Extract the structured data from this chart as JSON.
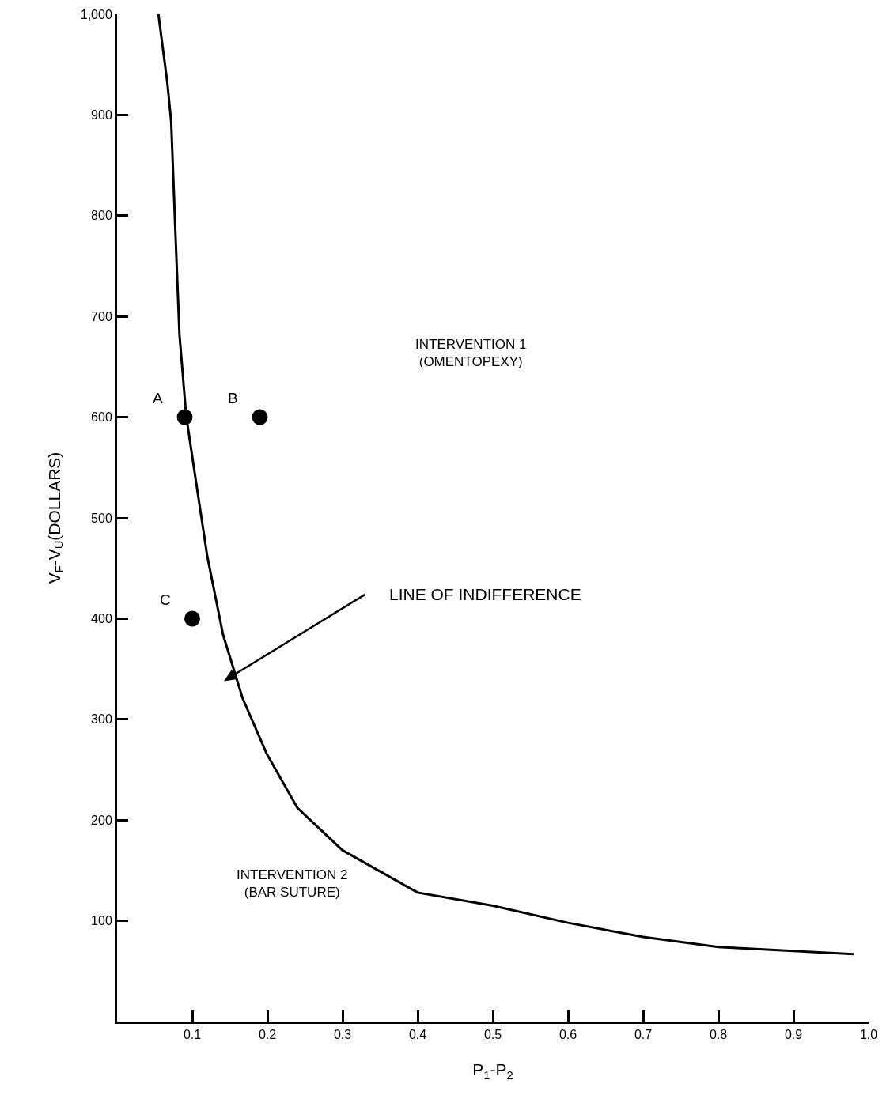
{
  "chart_data": {
    "type": "line",
    "xlabel": "P$_{1}$-P$_{2}$",
    "ylabel": "V$_{F}$-V$_{U}$(DOLLARS)",
    "xlim": [
      0,
      1.0
    ],
    "ylim": [
      0,
      1000
    ],
    "xticks": [
      0.1,
      0.2,
      0.3,
      0.4,
      0.5,
      0.6,
      0.7,
      0.8,
      0.9,
      {
        "value": 1,
        "label": "1.0"
      }
    ],
    "yticks": [
      100,
      200,
      300,
      400,
      500,
      600,
      700,
      800,
      900,
      {
        "value": 1000,
        "label": "1,000"
      }
    ],
    "line_style": "solid",
    "series": [
      {
        "color": "#000000",
        "marker": "none",
        "x": [
          0.055,
          0.067,
          0.072,
          0.078,
          0.083,
          0.092,
          0.104,
          0.12,
          0.141,
          0.167,
          0.199,
          0.24,
          0.3,
          0.4,
          0.5,
          0.6,
          0.7,
          0.8,
          0.9,
          0.98
        ],
        "values": [
          1000,
          931,
          893,
          776,
          682,
          601,
          541,
          462,
          384,
          321,
          266,
          212,
          170,
          128,
          115,
          98,
          84,
          74,
          70,
          67
        ]
      },
      {
        "type": "scatter",
        "color": "#000000",
        "marker": "circle",
        "x": [
          0.09,
          0.19,
          0.1
        ],
        "values": [
          600,
          600,
          400
        ]
      }
    ],
    "annotations": [
      {
        "text": "A",
        "x": 0.09,
        "y": 600
      },
      {
        "text": "B",
        "x": 0.19,
        "y": 600
      },
      {
        "text": "C",
        "x": 0.1,
        "y": 400
      },
      "INTERVENTION 1\n(OMENTOPEXY)",
      "INTERVENTION 2\n(BAR SUTURE)",
      "LINE OF INDIFFERENCE"
    ]
  }
}
